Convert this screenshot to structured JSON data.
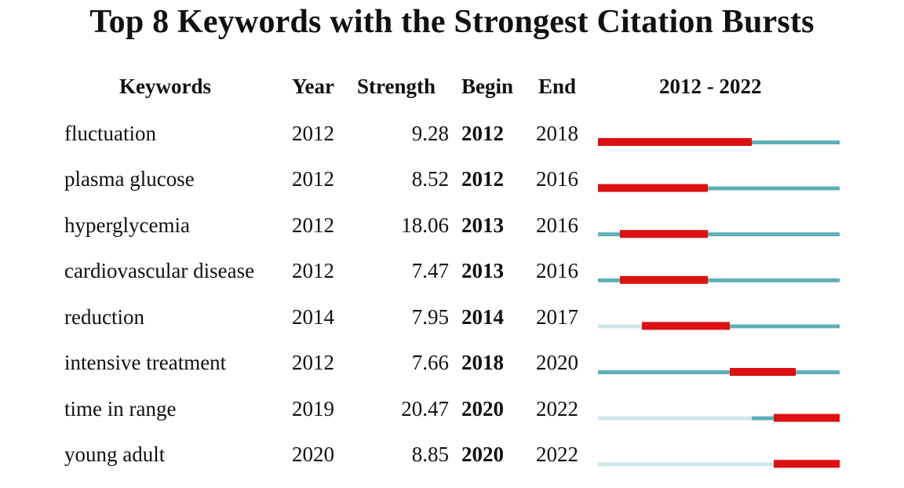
{
  "chart_data": {
    "type": "table",
    "title": "Top 8 Keywords with the Strongest Citation Bursts",
    "headers": {
      "keywords": "Keywords",
      "year": "Year",
      "strength": "Strength",
      "begin": "Begin",
      "end": "End",
      "range": "2012 - 2022"
    },
    "timeline": {
      "start": 2012,
      "end": 2022
    },
    "colors": {
      "burst": "#dd1111",
      "active": "#5fb0b8",
      "inactive": "#cfe6e9"
    },
    "rows": [
      {
        "keyword": "fluctuation",
        "year": "2012",
        "strength": "9.28",
        "begin": "2012",
        "end": "2018"
      },
      {
        "keyword": "plasma glucose",
        "year": "2012",
        "strength": "8.52",
        "begin": "2012",
        "end": "2016"
      },
      {
        "keyword": "hyperglycemia",
        "year": "2012",
        "strength": "18.06",
        "begin": "2013",
        "end": "2016"
      },
      {
        "keyword": "cardiovascular disease",
        "year": "2012",
        "strength": "7.47",
        "begin": "2013",
        "end": "2016"
      },
      {
        "keyword": "reduction",
        "year": "2014",
        "strength": "7.95",
        "begin": "2014",
        "end": "2017"
      },
      {
        "keyword": "intensive treatment",
        "year": "2012",
        "strength": "7.66",
        "begin": "2018",
        "end": "2020"
      },
      {
        "keyword": "time in range",
        "year": "2019",
        "strength": "20.47",
        "begin": "2020",
        "end": "2022"
      },
      {
        "keyword": "young adult",
        "year": "2020",
        "strength": "8.85",
        "begin": "2020",
        "end": "2022"
      }
    ]
  }
}
